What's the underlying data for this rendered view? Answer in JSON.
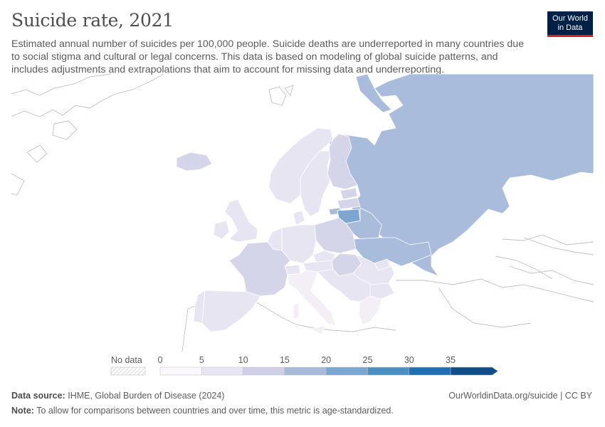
{
  "header": {
    "title": "Suicide rate, 2021",
    "subtitle": "Estimated annual number of suicides per 100,000 people. Suicide deaths are underreported in many countries due to social stigma and cultural or legal concerns. This data is based on modeling of global suicide patterns, and includes adjustments and extrapolations that aim to account for missing data and underreporting."
  },
  "logo": {
    "line1": "Our World",
    "line2": "in Data"
  },
  "legend": {
    "no_data_label": "No data",
    "tick_labels": [
      "0",
      "5",
      "10",
      "15",
      "20",
      "25",
      "30",
      "35"
    ],
    "colors": [
      "#fbf8fd",
      "#e8e6f2",
      "#cfd0e6",
      "#a8bad9",
      "#7ba6cf",
      "#4a90c5",
      "#1f6fb5",
      "#104d89"
    ]
  },
  "map": {
    "colors": {
      "very_low": "#f4eff6",
      "low": "#e7e5f1",
      "mid_low": "#d5d5ea",
      "mid": "#a9bcdb",
      "high": "#7ea4d0",
      "no_data_border": "#bdbdbd"
    }
  },
  "footer": {
    "source_label": "Data source:",
    "source_text": "IHME, Global Burden of Disease (2024)",
    "note_label": "Note:",
    "note_text": "To allow for comparisons between countries and over time, this metric is age-standardized.",
    "url": "OurWorldinData.org/suicide",
    "license": "CC BY"
  }
}
